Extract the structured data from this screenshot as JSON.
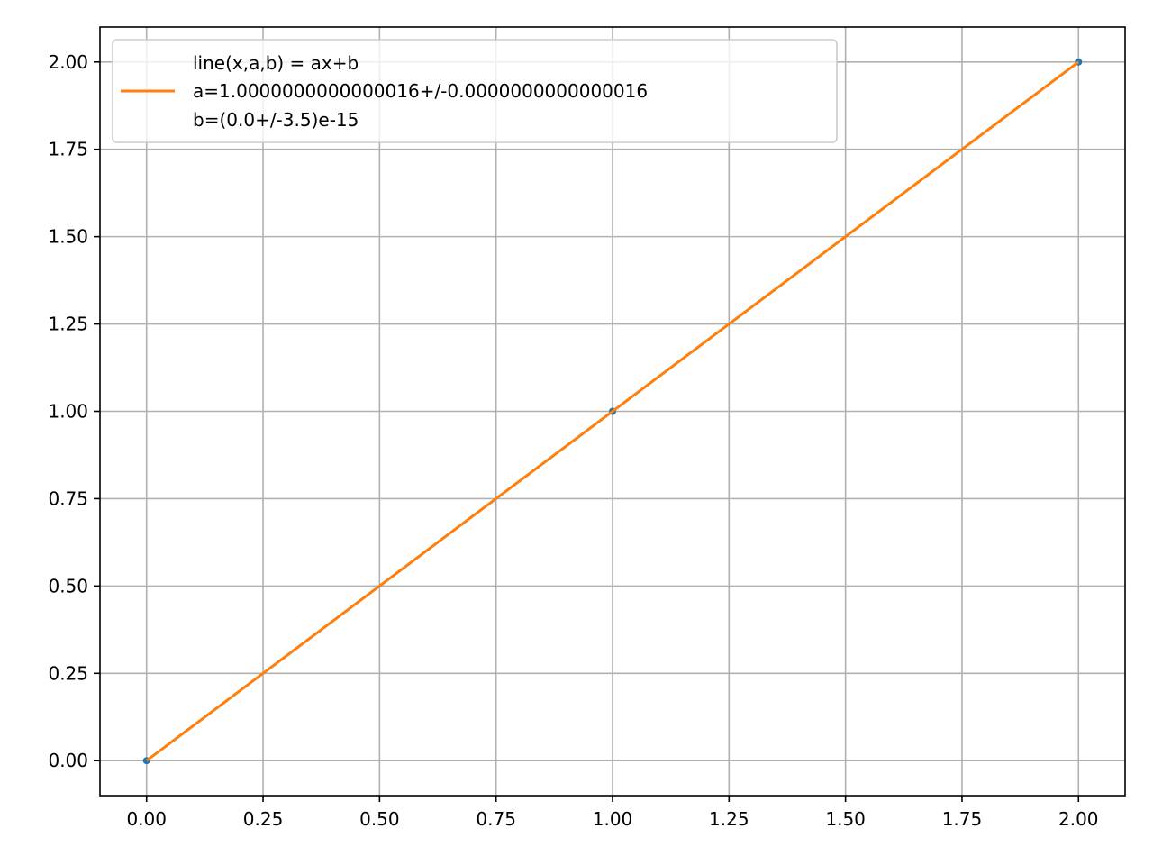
{
  "chart_data": {
    "type": "line",
    "title": "",
    "xlabel": "",
    "ylabel": "",
    "xlim": [
      -0.1,
      2.1
    ],
    "ylim": [
      -0.1,
      2.1
    ],
    "xticks": [
      0.0,
      0.25,
      0.5,
      0.75,
      1.0,
      1.25,
      1.5,
      1.75,
      2.0
    ],
    "xtick_labels": [
      "0.00",
      "0.25",
      "0.50",
      "0.75",
      "1.00",
      "1.25",
      "1.50",
      "1.75",
      "2.00"
    ],
    "yticks": [
      0.0,
      0.25,
      0.5,
      0.75,
      1.0,
      1.25,
      1.5,
      1.75,
      2.0
    ],
    "ytick_labels": [
      "0.00",
      "0.25",
      "0.50",
      "0.75",
      "1.00",
      "1.25",
      "1.50",
      "1.75",
      "2.00"
    ],
    "grid": true,
    "legend_position": "top-left",
    "series": [
      {
        "kind": "scatter",
        "color": "#1f77b4",
        "x": [
          0,
          1,
          2
        ],
        "y": [
          0,
          1,
          2
        ]
      },
      {
        "kind": "line",
        "color": "#ff7f0e",
        "legend_lines": [
          "line(x,a,b) = ax+b",
          "a=1.0000000000000016+/-0.0000000000000016",
          "b=(0.0+/-3.5)e-15"
        ],
        "x": [
          0,
          2
        ],
        "y": [
          0,
          2
        ]
      }
    ]
  }
}
